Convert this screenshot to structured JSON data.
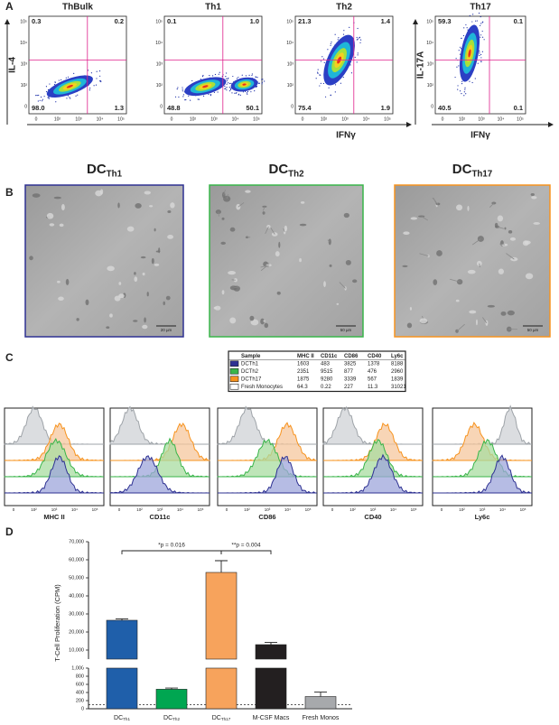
{
  "panel_labels": [
    "A",
    "B",
    "C",
    "D"
  ],
  "panel_a": {
    "plots": [
      {
        "title": "ThBulk",
        "title_color": "#222222",
        "quadrants": [
          "0.3",
          "0.2",
          "98.0",
          "1.3"
        ]
      },
      {
        "title": "Th1",
        "title_color": "#2e3192",
        "quadrants": [
          "0.1",
          "1.0",
          "48.8",
          "50.1"
        ]
      },
      {
        "title": "Th2",
        "title_color": "#39b54a",
        "quadrants": [
          "21.3",
          "1.4",
          "75.4",
          "1.9"
        ]
      },
      {
        "title": "Th17",
        "title_color": "#f7931e",
        "quadrants": [
          "59.3",
          "0.1",
          "40.5",
          "0.1"
        ]
      }
    ],
    "x_label": "IFNγ",
    "y_label": "IL-4",
    "y_label_th17": "IL-17A",
    "ticks": [
      "0",
      "10²",
      "10³",
      "10⁴",
      "10⁵"
    ]
  },
  "panel_b": {
    "images": [
      {
        "title": {
          "main": "DC",
          "sub": "Th1"
        },
        "color": "#2e3192",
        "scale_bar": "20 µm"
      },
      {
        "title": {
          "main": "DC",
          "sub": "Th2"
        },
        "color": "#39b54a",
        "scale_bar": "50 µm"
      },
      {
        "title": {
          "main": "DC",
          "sub": "Th17"
        },
        "color": "#f7931e",
        "scale_bar": "50 µm"
      }
    ]
  },
  "panel_c": {
    "table": {
      "header": [
        "Sample",
        "MHC II",
        "CD11c",
        "CD86",
        "CD40",
        "Ly6c"
      ],
      "rows": [
        [
          "DCTh1",
          "1603",
          "483",
          "3825",
          "1378",
          "8188"
        ],
        [
          "DCTh2",
          "2351",
          "9515",
          "877",
          "476",
          "2960"
        ],
        [
          "DCTh17",
          "1875",
          "9280",
          "3339",
          "567",
          "1839"
        ],
        [
          "Fresh Monocytes",
          "64.3",
          "0.22",
          "227",
          "11.3",
          "31021"
        ]
      ],
      "swatches": [
        "#2e3192",
        "#39b54a",
        "#f7931e",
        "#ffffff"
      ]
    },
    "histograms": [
      "MHC II",
      "CD11c",
      "CD86",
      "CD40",
      "Ly6c"
    ],
    "ticks": [
      "0",
      "10²",
      "10³",
      "10⁴",
      "10⁵"
    ]
  },
  "panel_d": {
    "y_label": "T-Cell Proliferation (CPM)",
    "upper_ylim": [
      5000,
      70000
    ],
    "upper_ticks": [
      {
        "value": 10000,
        "label": "10,000"
      },
      {
        "value": 20000,
        "label": "20,000"
      },
      {
        "value": 30000,
        "label": "30,000"
      },
      {
        "value": 40000,
        "label": "40,000"
      },
      {
        "value": 50000,
        "label": "50,000"
      },
      {
        "value": 60000,
        "label": "60,000"
      },
      {
        "value": 70000,
        "label": "70,000"
      }
    ],
    "lower_ylim": [
      0,
      1000
    ],
    "lower_ticks": [
      0,
      200,
      400,
      600,
      800,
      {
        "value": 1000,
        "label": "1,000"
      }
    ],
    "reference_line": 100,
    "bars": [
      {
        "label": {
          "main": "DC",
          "sub": "Th1"
        },
        "value": 26500,
        "error": 800,
        "color": "#1f5faa"
      },
      {
        "label": {
          "main": "DC",
          "sub": "Th2"
        },
        "value": 480,
        "error": 30,
        "color": "#00a651"
      },
      {
        "label": {
          "main": "DC",
          "sub": "Th17"
        },
        "value": 53000,
        "error": 6500,
        "color": "#f7a35c"
      },
      {
        "label": {
          "main": "M-CSF Macs"
        },
        "value": 13000,
        "error": 1200,
        "color": "#231f20"
      },
      {
        "label": {
          "main": "Fresh Monos"
        },
        "value": 300,
        "error": 110,
        "color": "#a7a9ac"
      }
    ],
    "significance": [
      {
        "label": "*p = 0.016",
        "from": 0,
        "to": 2,
        "value": 65000
      },
      {
        "label": "**p = 0.004",
        "from": 2,
        "to": 3,
        "value": 65000
      }
    ]
  }
}
